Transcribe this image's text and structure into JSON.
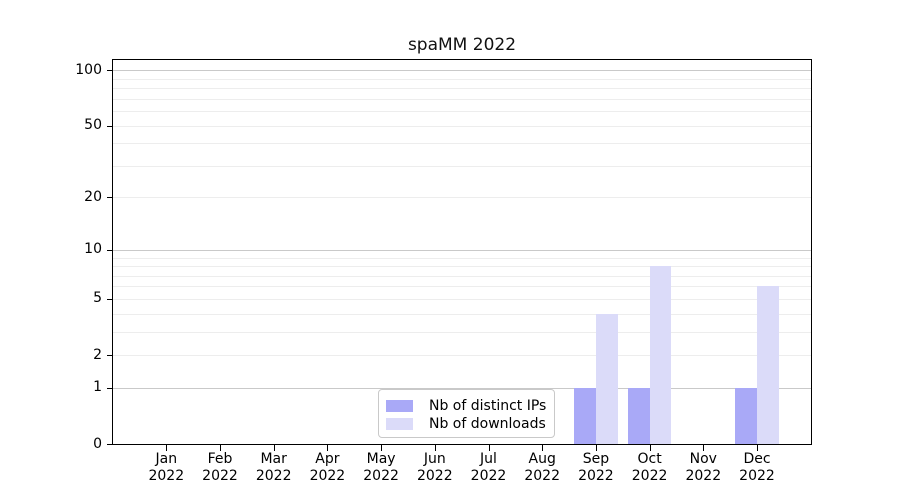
{
  "chart_data": {
    "type": "bar",
    "title": "spaMM 2022",
    "categories": [
      "Jan 2022",
      "Feb 2022",
      "Mar 2022",
      "Apr 2022",
      "May 2022",
      "Jun 2022",
      "Jul 2022",
      "Aug 2022",
      "Sep 2022",
      "Oct 2022",
      "Nov 2022",
      "Dec 2022"
    ],
    "series": [
      {
        "name": "Nb of distinct IPs",
        "color": "#a9a9f7",
        "values": [
          0,
          0,
          0,
          0,
          0,
          0,
          0,
          0,
          1,
          1,
          0,
          1
        ]
      },
      {
        "name": "Nb of downloads",
        "color": "#dbdbf9",
        "values": [
          0,
          0,
          0,
          0,
          0,
          0,
          0,
          0,
          4,
          8,
          0,
          6
        ]
      }
    ],
    "xlabel": "",
    "ylabel": "",
    "yscale": "log1p",
    "ylim": [
      0,
      113.5
    ],
    "yticks": [
      0,
      1,
      2,
      5,
      10,
      20,
      50,
      100
    ],
    "grid_minor_values": [
      2,
      3,
      4,
      5,
      6,
      7,
      8,
      9,
      20,
      30,
      40,
      50,
      60,
      70,
      80,
      90
    ],
    "grid_major_values": [
      1,
      10,
      100
    ],
    "grid": true,
    "legend_position": "inside-bottom-center"
  },
  "colors": {
    "background": "#ffffff",
    "spine": "#000000",
    "grid_minor": "#ededed",
    "grid_major": "#c9c9c9",
    "tick_label": "#000000",
    "title": "#111111",
    "legend_border": "#c9c9c9",
    "legend_background": "#ffffff"
  }
}
